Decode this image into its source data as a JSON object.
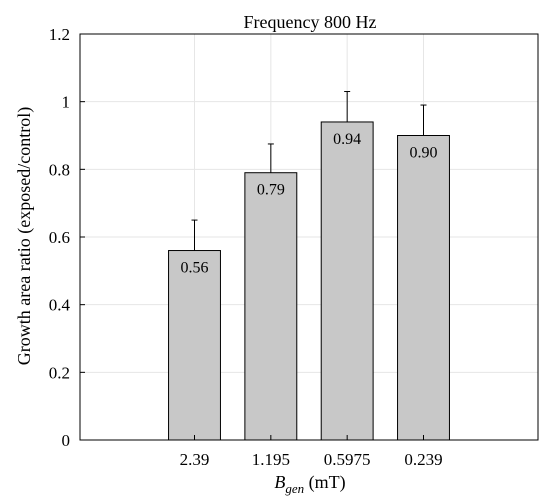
{
  "chart_data": {
    "type": "bar",
    "title": "Frequency 800 Hz",
    "ylabel": "Growth area ratio (exposed/control)",
    "xlabel": {
      "base": "B",
      "subscript": "gen",
      "unit": " (mT)"
    },
    "categories": [
      "2.39",
      "1.195",
      "0.5975",
      "0.239"
    ],
    "values": [
      0.56,
      0.79,
      0.94,
      0.9
    ],
    "error_upper": [
      0.65,
      0.875,
      1.03,
      0.99
    ],
    "data_labels": [
      "0.56",
      "0.79",
      "0.94",
      "0.90"
    ],
    "ylim": [
      0,
      1.2
    ],
    "yticks": [
      0,
      0.2,
      0.4,
      0.6,
      0.8,
      1,
      1.2
    ],
    "ytick_labels": [
      "0",
      "0.2",
      "0.4",
      "0.6",
      "0.8",
      "1",
      "1.2"
    ],
    "grid": true,
    "bar_color": "#c8c8c8",
    "bar_edge_color": "#000000",
    "grid_color": "#e6e6e6"
  }
}
